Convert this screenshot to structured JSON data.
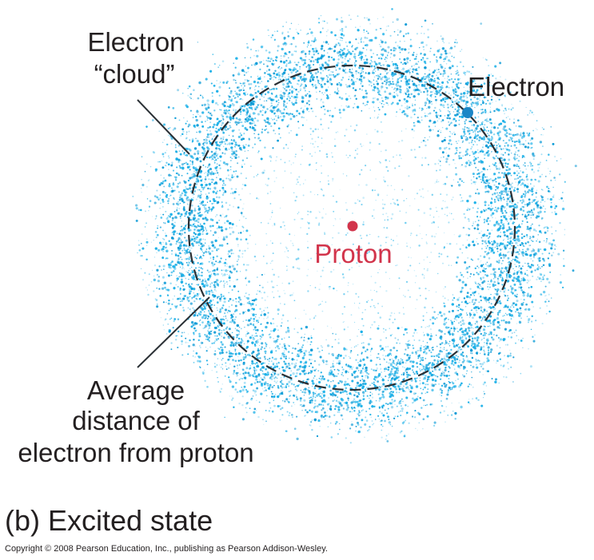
{
  "diagram": {
    "labels": {
      "cloud_line1": "Electron",
      "cloud_line2": "“cloud”",
      "electron": "Electron",
      "proton": "Proton",
      "average_line1": "Average",
      "average_line2": "distance of",
      "average_line3": "electron from proton"
    },
    "caption": "(b) Excited state",
    "copyright": "Copyright © 2008 Pearson Education, Inc., publishing as Pearson Addison-Wesley.",
    "colors": {
      "cloud": "#1ab0e8",
      "cloud_dark": "#0a9ad6",
      "electron": "#1c86c6",
      "proton": "#d2344b",
      "orbit": "#2a3035",
      "text": "#231f20"
    }
  }
}
